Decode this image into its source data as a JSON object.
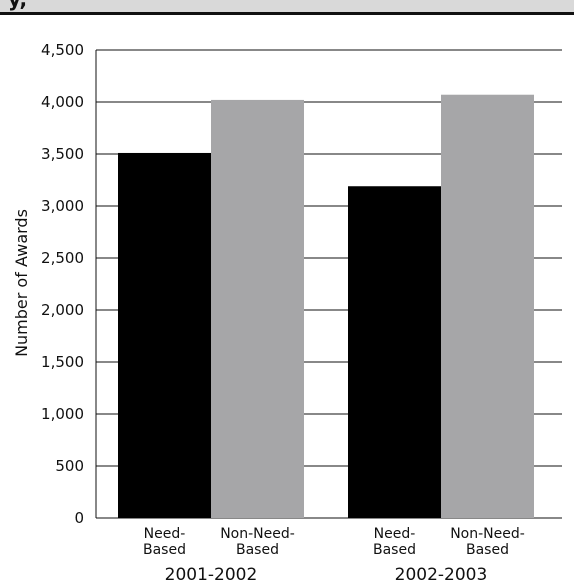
{
  "header": {
    "title_fragment": "y,"
  },
  "chart_data": {
    "type": "bar",
    "title": "",
    "xlabel": "",
    "ylabel": "Number of Awards",
    "ylim": [
      0,
      4500
    ],
    "yticks": [
      0,
      500,
      1000,
      1500,
      2000,
      2500,
      3000,
      3500,
      4000,
      4500
    ],
    "ytick_labels": [
      "0",
      "500",
      "1,000",
      "1,500",
      "2,000",
      "2,500",
      "3,000",
      "3,500",
      "4,000",
      "4,500"
    ],
    "grid": "horizontal",
    "groups": [
      {
        "label": "2001-2002",
        "bars": [
          {
            "label_line1": "Need-",
            "label_line2": "Based",
            "value": 3510,
            "color": "#000000"
          },
          {
            "label_line1": "Non-Need-",
            "label_line2": "Based",
            "value": 4020,
            "color": "#a6a6a8"
          }
        ]
      },
      {
        "label": "2002-2003",
        "bars": [
          {
            "label_line1": "Need-",
            "label_line2": "Based",
            "value": 3190,
            "color": "#000000"
          },
          {
            "label_line1": "Non-Need-",
            "label_line2": "Based",
            "value": 4070,
            "color": "#a6a6a8"
          }
        ]
      }
    ]
  }
}
